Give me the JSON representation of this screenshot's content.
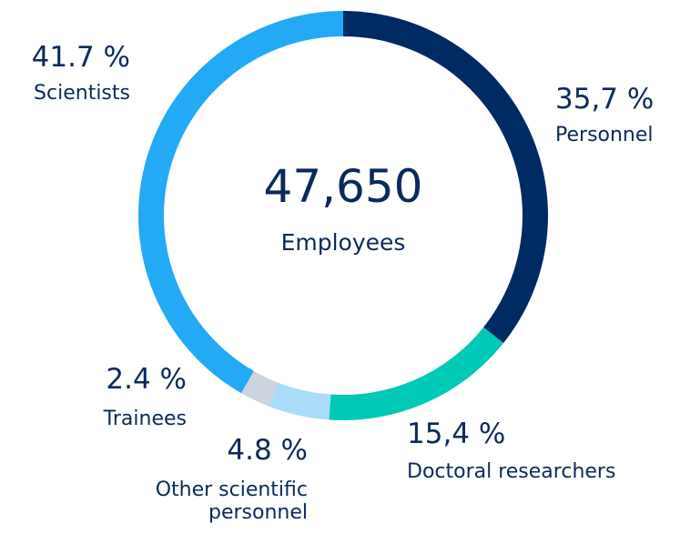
{
  "chart_data": {
    "type": "donut",
    "center_value": "47,650",
    "center_label": "Employees",
    "categories": [
      "Personnel",
      "Doctoral researchers",
      "Other scientific personnel",
      "Trainees",
      "Scientists"
    ],
    "values": [
      35.7,
      15.4,
      4.8,
      2.4,
      41.7
    ],
    "value_labels": [
      "35,7 %",
      "15,4 %",
      "4.8 %",
      "2.4 %",
      "41.7 %"
    ],
    "colors": [
      "#002a62",
      "#00c9b5",
      "#a8dcf9",
      "#ccd3de",
      "#23a9f5"
    ]
  }
}
